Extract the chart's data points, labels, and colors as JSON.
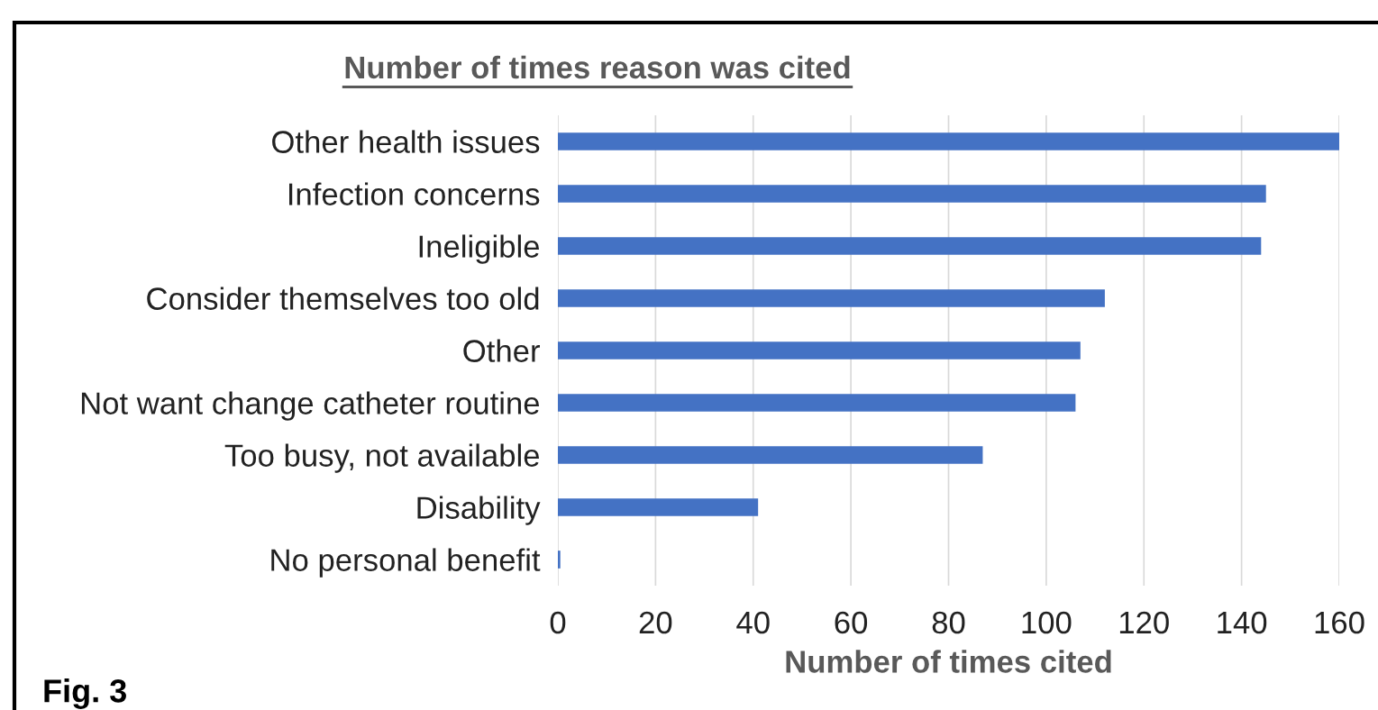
{
  "chart_data": {
    "type": "bar",
    "orientation": "horizontal",
    "title": "Number of times reason was cited",
    "xlabel": "Number of times cited",
    "categories": [
      "Other health issues",
      "Infection concerns",
      "Ineligible",
      "Consider themselves too old",
      "Other",
      "Not want change catheter routine",
      "Too busy, not available",
      "Disability",
      "No personal benefit"
    ],
    "values": [
      160,
      145,
      144,
      112,
      107,
      106,
      87,
      41,
      0.5
    ],
    "color": "#4472c4",
    "xlim": [
      0,
      160
    ],
    "xticks": [
      0,
      20,
      40,
      60,
      80,
      100,
      120,
      140,
      160
    ],
    "grid": "x",
    "legend": false,
    "annotations": [
      "Fig. 3"
    ]
  }
}
